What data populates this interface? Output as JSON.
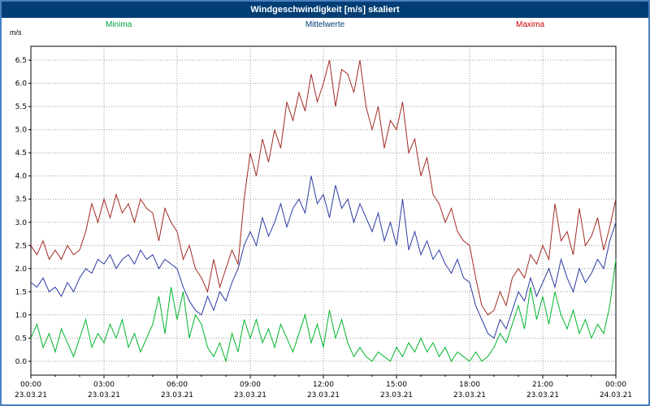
{
  "window": {
    "title": "Windgeschwindigkeit [m/s] skaliert"
  },
  "legend": [
    {
      "label": "Minima",
      "color": "#00a33c"
    },
    {
      "label": "Mittelwerte",
      "color": "#003e74"
    },
    {
      "label": "Maxima",
      "color": "#cc0000"
    }
  ],
  "chart_data": {
    "type": "line",
    "title": "Windgeschwindigkeit [m/s] skaliert",
    "xlabel": "",
    "ylabel": "m/s",
    "ylim": [
      -0.3,
      6.8
    ],
    "yticks": [
      0.0,
      0.5,
      1.0,
      1.5,
      2.0,
      2.5,
      3.0,
      3.5,
      4.0,
      4.5,
      5.0,
      5.5,
      6.0,
      6.5
    ],
    "grid": "dotted",
    "legend_position": "top",
    "x_hours_range": [
      0,
      24
    ],
    "sample_interval_minutes": 15,
    "xticks": [
      {
        "hour": 0,
        "time": "00:00",
        "date": "23.03.21"
      },
      {
        "hour": 3,
        "time": "03:00",
        "date": "23.03.21"
      },
      {
        "hour": 6,
        "time": "06:00",
        "date": "23.03.21"
      },
      {
        "hour": 9,
        "time": "09:00",
        "date": "23.03.21"
      },
      {
        "hour": 12,
        "time": "12:00",
        "date": "23.03.21"
      },
      {
        "hour": 15,
        "time": "15:00",
        "date": "23.03.21"
      },
      {
        "hour": 18,
        "time": "18:00",
        "date": "23.03.21"
      },
      {
        "hour": 21,
        "time": "21:00",
        "date": "23.03.21"
      },
      {
        "hour": 24,
        "time": "00:00",
        "date": "24.03.21"
      }
    ],
    "series": [
      {
        "name": "Minima",
        "color": "#00b42a",
        "values": [
          0.5,
          0.8,
          0.3,
          0.6,
          0.2,
          0.7,
          0.4,
          0.1,
          0.5,
          0.9,
          0.3,
          0.6,
          0.4,
          0.8,
          0.5,
          0.9,
          0.3,
          0.6,
          0.2,
          0.5,
          0.8,
          1.4,
          0.6,
          1.6,
          0.9,
          1.5,
          0.5,
          1.0,
          0.8,
          0.3,
          0.1,
          0.4,
          0.0,
          0.6,
          0.2,
          0.9,
          0.5,
          0.9,
          0.4,
          0.7,
          0.3,
          0.8,
          0.5,
          0.2,
          0.6,
          1.0,
          0.4,
          0.8,
          0.3,
          1.1,
          0.5,
          0.9,
          0.4,
          0.1,
          0.3,
          0.1,
          0.0,
          0.2,
          0.1,
          0.0,
          0.3,
          0.1,
          0.4,
          0.2,
          0.5,
          0.2,
          0.4,
          0.1,
          0.3,
          0.0,
          0.2,
          0.1,
          0.0,
          0.2,
          0.0,
          0.1,
          0.3,
          0.6,
          0.4,
          0.8,
          1.2,
          0.7,
          1.6,
          0.9,
          1.4,
          0.8,
          1.5,
          1.0,
          0.7,
          1.1,
          0.6,
          0.9,
          0.5,
          0.8,
          0.6,
          1.2,
          2.2
        ]
      },
      {
        "name": "Mittelwerte",
        "color": "#2a3aa0",
        "values": [
          1.7,
          1.6,
          1.8,
          1.5,
          1.6,
          1.4,
          1.7,
          1.5,
          1.8,
          2.0,
          1.9,
          2.2,
          2.1,
          2.3,
          2.0,
          2.2,
          2.3,
          2.1,
          2.4,
          2.2,
          2.3,
          2.0,
          2.2,
          2.1,
          2.0,
          1.6,
          1.3,
          1.1,
          1.0,
          1.4,
          1.1,
          1.5,
          1.3,
          1.7,
          2.0,
          2.5,
          2.8,
          2.5,
          3.1,
          2.7,
          3.0,
          3.4,
          2.9,
          3.3,
          3.5,
          3.2,
          4.0,
          3.4,
          3.6,
          3.1,
          3.8,
          3.3,
          3.5,
          3.0,
          3.4,
          3.1,
          2.8,
          3.2,
          2.6,
          3.0,
          2.5,
          3.5,
          2.4,
          2.8,
          2.3,
          2.6,
          2.2,
          2.4,
          2.1,
          1.9,
          2.2,
          1.8,
          1.7,
          1.2,
          0.9,
          0.6,
          0.5,
          0.9,
          0.7,
          1.1,
          1.5,
          1.3,
          1.8,
          1.4,
          1.7,
          2.0,
          1.6,
          2.2,
          1.8,
          1.5,
          2.0,
          1.7,
          1.9,
          2.2,
          2.0,
          2.6,
          3.0
        ]
      },
      {
        "name": "Maxima",
        "color": "#a22a22",
        "values": [
          2.5,
          2.3,
          2.6,
          2.2,
          2.4,
          2.2,
          2.5,
          2.3,
          2.4,
          2.8,
          3.4,
          3.0,
          3.5,
          3.1,
          3.6,
          3.2,
          3.4,
          3.0,
          3.5,
          3.3,
          3.2,
          2.6,
          3.3,
          3.0,
          2.8,
          2.2,
          2.5,
          2.0,
          1.8,
          1.5,
          2.2,
          1.6,
          2.0,
          2.4,
          2.1,
          3.5,
          4.5,
          4.0,
          4.8,
          4.3,
          5.0,
          4.6,
          5.6,
          5.2,
          5.8,
          5.4,
          6.2,
          5.6,
          6.0,
          6.5,
          5.5,
          6.3,
          6.2,
          5.8,
          6.5,
          5.5,
          5.0,
          5.5,
          4.6,
          5.2,
          5.0,
          5.6,
          4.5,
          4.8,
          4.0,
          4.4,
          3.6,
          3.4,
          3.0,
          3.3,
          2.8,
          2.6,
          2.5,
          1.8,
          1.2,
          1.0,
          1.1,
          1.5,
          1.2,
          1.8,
          2.0,
          1.8,
          2.3,
          2.1,
          2.5,
          2.2,
          3.4,
          2.6,
          2.8,
          2.3,
          3.3,
          2.5,
          2.7,
          3.1,
          2.4,
          2.9,
          3.5
        ]
      }
    ]
  }
}
